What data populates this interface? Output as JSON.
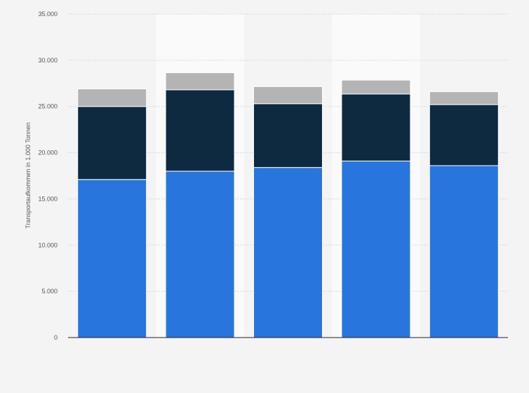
{
  "chart_data": {
    "type": "bar",
    "stacked": true,
    "categories": [
      "",
      "",
      "",
      "",
      ""
    ],
    "series": [
      {
        "values": [
          17100,
          18000,
          18400,
          19100,
          18600
        ],
        "color": "#2876dd"
      },
      {
        "values": [
          7900,
          8800,
          6900,
          7250,
          6600
        ],
        "color": "#0e2a40"
      },
      {
        "values": [
          1900,
          1850,
          1850,
          1500,
          1400
        ],
        "color": "#b4b4b4"
      }
    ],
    "ylabel": "Transportaufkommen in 1.000 Tonnen",
    "ylim": [
      0,
      35000
    ],
    "yticks": [
      {
        "value": 0,
        "label": "0"
      },
      {
        "value": 5000,
        "label": "5.000"
      },
      {
        "value": 10000,
        "label": "10.000"
      },
      {
        "value": 15000,
        "label": "15.000"
      },
      {
        "value": 20000,
        "label": "20.000"
      },
      {
        "value": 25000,
        "label": "25.000"
      },
      {
        "value": 30000,
        "label": "30.000"
      },
      {
        "value": 35000,
        "label": "35.000"
      }
    ],
    "grid": true,
    "legend": "none",
    "background": "#f4f4f4",
    "band_color": "#fafafa"
  }
}
